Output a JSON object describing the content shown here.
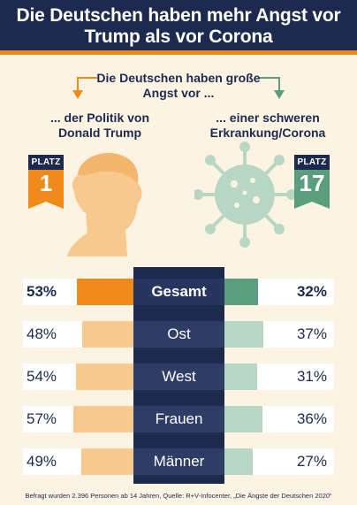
{
  "header": {
    "title": "Die Deutschen haben mehr Angst vor Trump als vor Corona"
  },
  "subtitle": "Die Deutschen haben große Angst vor ...",
  "left": {
    "label": "... der Politik von Donald Trump",
    "badge_cap": "PLATZ",
    "badge_num": "1"
  },
  "right": {
    "label": "... einer schweren Erkrankung/Corona",
    "badge_cap": "PLATZ",
    "badge_num": "17"
  },
  "colors": {
    "navy": "#1d2a4f",
    "orange": "#ee8a1a",
    "orange_light": "#f8c98e",
    "green": "#5a9e7e",
    "green_light": "#b7d7c4",
    "background": "#fdf3e3"
  },
  "icons": {
    "left": "trump-silhouette-icon",
    "right": "coronavirus-icon"
  },
  "chart_data": {
    "type": "bar",
    "categories": [
      "Gesamt",
      "Ost",
      "West",
      "Frauen",
      "Männer"
    ],
    "series": [
      {
        "values": [
          53,
          48,
          54,
          57,
          49
        ]
      },
      {
        "values": [
          32,
          37,
          31,
          36,
          27
        ]
      }
    ],
    "labels_left": [
      "53%",
      "48%",
      "54%",
      "57%",
      "49%"
    ],
    "labels_right": [
      "32%",
      "37%",
      "31%",
      "36%",
      "27%"
    ]
  },
  "footnote": "Befragt wurden 2.396 Personen ab 14 Jahren, Quelle: R+V-Infocenter, „Die Ängste der Deutschen 2020“"
}
